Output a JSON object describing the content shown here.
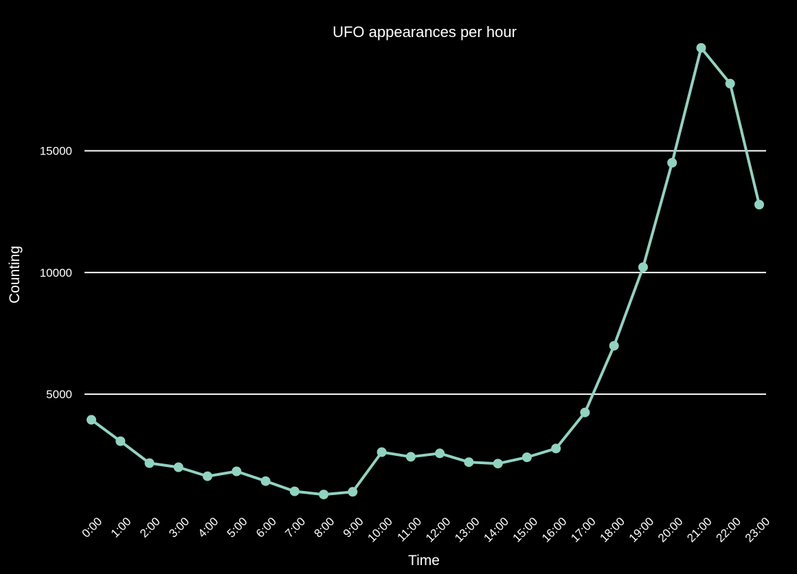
{
  "chart_data": {
    "type": "line",
    "title": "UFO appearances per hour",
    "xlabel": "Time",
    "ylabel": "Counting",
    "categories": [
      "0:00",
      "1:00",
      "2:00",
      "3:00",
      "4:00",
      "5:00",
      "6:00",
      "7:00",
      "8:00",
      "9:00",
      "10:00",
      "11:00",
      "12:00",
      "13:00",
      "14:00",
      "15:00",
      "16:00",
      "17:00",
      "18:00",
      "19:00",
      "20:00",
      "21:00",
      "22:00",
      "23:00"
    ],
    "series": [
      {
        "values": [
          3950,
          3070,
          2170,
          2000,
          1630,
          1830,
          1430,
          1010,
          880,
          990,
          2620,
          2430,
          2570,
          2210,
          2150,
          2410,
          2770,
          4250,
          6990,
          10220,
          14510,
          19230,
          17760,
          12790
        ]
      }
    ],
    "ylim": [
      0,
      19500
    ],
    "yticks": [
      5000,
      10000,
      15000
    ],
    "grid": true,
    "colors": {
      "background": "#000000",
      "line": "#8fd3c0",
      "grid": "#ffffff",
      "text": "#ffffff"
    }
  }
}
